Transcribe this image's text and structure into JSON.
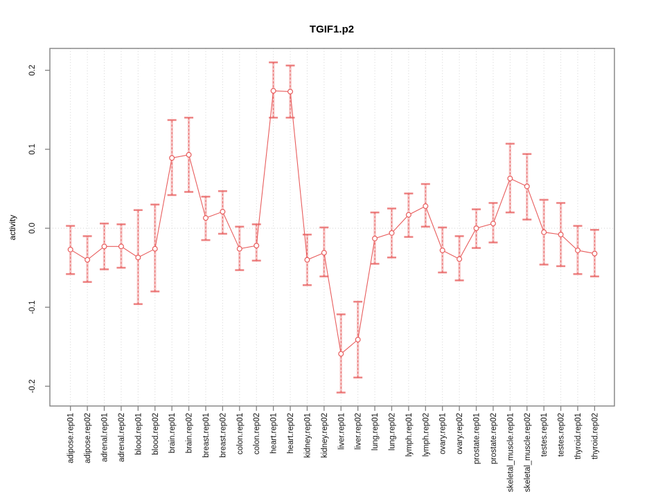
{
  "figure": {
    "background": "#ffffff"
  },
  "chart_data": {
    "type": "line",
    "title": "TGIF1.p2",
    "xlabel": "",
    "ylabel": "activity",
    "ylim": [
      -0.225,
      0.228
    ],
    "yticks": [
      0.2,
      0.1,
      0.0,
      -0.1,
      -0.2
    ],
    "ytick_labels": [
      "0.2",
      "0.1",
      "0.0",
      "-0.1",
      "-0.2"
    ],
    "grid": "dotted vertical line per category, dotted horizontal line at 0",
    "legend": "none",
    "marker": "open-circle",
    "error_bars": true,
    "categories": [
      "adipose.rep01",
      "adipose.rep02",
      "adrenal.rep01",
      "adrenal.rep02",
      "blood.rep01",
      "blood.rep02",
      "brain.rep01",
      "brain.rep02",
      "breast.rep01",
      "breast.rep02",
      "colon.rep01",
      "colon.rep02",
      "heart.rep01",
      "heart.rep02",
      "kidney.rep01",
      "kidney.rep02",
      "liver.rep01",
      "liver.rep02",
      "lung.rep01",
      "lung.rep02",
      "lymph.rep01",
      "lymph.rep02",
      "ovary.rep01",
      "ovary.rep02",
      "prostate.rep01",
      "prostate.rep02",
      "skeletal_muscle.rep01",
      "skeletal_muscle.rep02",
      "testes.rep01",
      "testes.rep02",
      "thyroid.rep01",
      "thyroid.rep02"
    ],
    "series": [
      {
        "name": "activity",
        "values": [
          -0.027,
          -0.04,
          -0.023,
          -0.023,
          -0.037,
          -0.026,
          0.089,
          0.093,
          0.013,
          0.021,
          -0.026,
          -0.022,
          0.174,
          0.173,
          -0.04,
          -0.031,
          -0.159,
          -0.141,
          -0.013,
          -0.006,
          0.017,
          0.028,
          -0.028,
          -0.039,
          0.0,
          0.006,
          0.063,
          0.053,
          -0.005,
          -0.008,
          -0.028,
          -0.032
        ],
        "error_low": [
          -0.058,
          -0.068,
          -0.052,
          -0.05,
          -0.096,
          -0.08,
          0.042,
          0.046,
          -0.015,
          -0.007,
          -0.053,
          -0.041,
          0.14,
          0.14,
          -0.072,
          -0.061,
          -0.208,
          -0.189,
          -0.045,
          -0.037,
          -0.011,
          0.002,
          -0.056,
          -0.066,
          -0.025,
          -0.018,
          0.02,
          0.011,
          -0.046,
          -0.048,
          -0.058,
          -0.061
        ],
        "error_high": [
          0.003,
          -0.01,
          0.006,
          0.005,
          0.023,
          0.03,
          0.137,
          0.14,
          0.04,
          0.047,
          0.002,
          0.005,
          0.21,
          0.206,
          -0.008,
          0.001,
          -0.109,
          -0.093,
          0.02,
          0.025,
          0.044,
          0.056,
          0.001,
          -0.01,
          0.024,
          0.032,
          0.107,
          0.094,
          0.036,
          0.032,
          0.003,
          -0.002
        ]
      }
    ],
    "colors": {
      "series": "#e85c5c",
      "band": "#f2a0a0",
      "grid": "#d6d6d6",
      "zero_line": "#cfcfcf",
      "frame": "#808080",
      "text": "#000000"
    }
  }
}
